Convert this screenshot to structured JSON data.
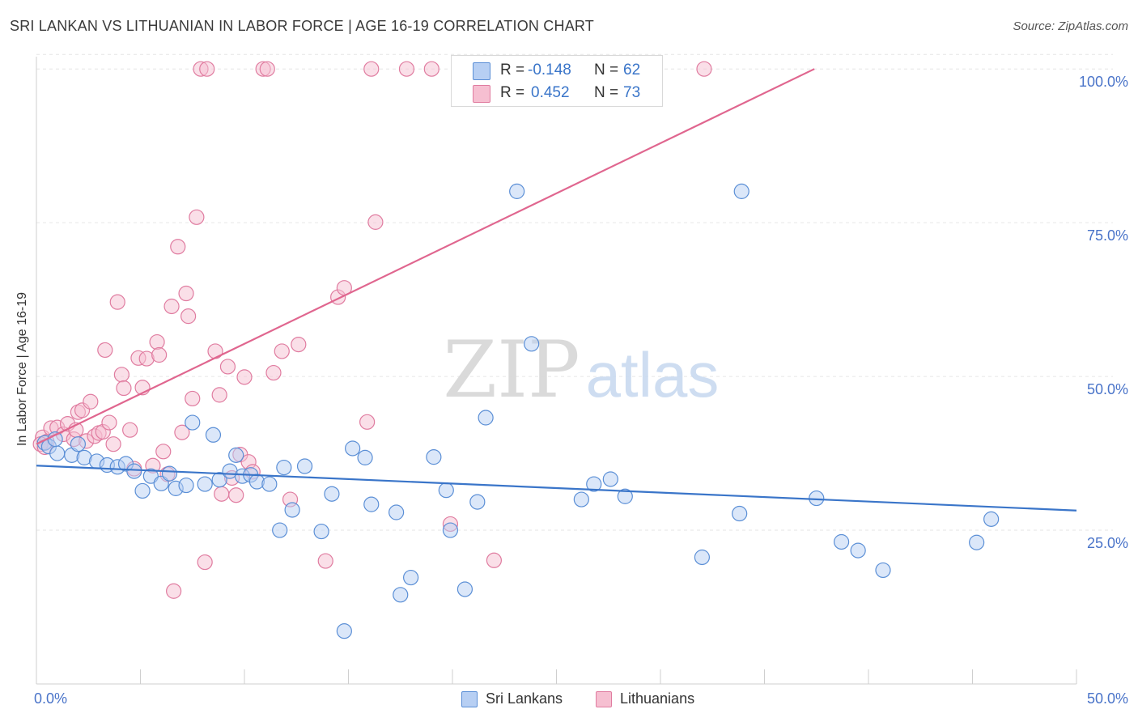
{
  "title": "SRI LANKAN VS LITHUANIAN IN LABOR FORCE | AGE 16-19 CORRELATION CHART",
  "source": "Source: ZipAtlas.com",
  "watermark": {
    "zip": "ZIP",
    "atlas": "atlas"
  },
  "colors": {
    "blue": "#5b8fd6",
    "blue_fill": "#b7cff3",
    "blue_line": "#3a75c9",
    "pink": "#e07ca0",
    "pink_fill": "#f6bfd1",
    "pink_line": "#e0668f",
    "tick_text": "#4a74c9"
  },
  "stats": {
    "blue": {
      "r_label": "R =",
      "r_value": "-0.148",
      "n_label": "N =",
      "n_value": "62"
    },
    "pink": {
      "r_label": "R =",
      "r_value": "0.452",
      "n_label": "N =",
      "n_value": "73"
    }
  },
  "chart_data": {
    "type": "scatter",
    "title": "SRI LANKAN VS LITHUANIAN IN LABOR FORCE | AGE 16-19 CORRELATION CHART",
    "xlabel": "",
    "ylabel": "In Labor Force | Age 16-19",
    "xlim": [
      0,
      50
    ],
    "ylim": [
      0,
      102
    ],
    "x_tick_labels": [
      "0.0%",
      "50.0%"
    ],
    "y_tick_values": [
      25,
      50,
      75,
      100
    ],
    "y_tick_labels": [
      "25.0%",
      "50.0%",
      "75.0%",
      "100.0%"
    ],
    "legend": [
      "Sri Lankans",
      "Lithuanians"
    ],
    "series": [
      {
        "name": "Sri Lankans",
        "color": "blue",
        "trend": {
          "x0": 0,
          "y0": 35.5,
          "x1": 50,
          "y1": 28.2
        },
        "points": [
          [
            0.4,
            39.2
          ],
          [
            0.6,
            38.6
          ],
          [
            1.0,
            37.5
          ],
          [
            1.7,
            37.2
          ],
          [
            2.3,
            36.8
          ],
          [
            2.9,
            36.2
          ],
          [
            3.4,
            35.6
          ],
          [
            3.9,
            35.3
          ],
          [
            4.3,
            35.8
          ],
          [
            4.7,
            34.6
          ],
          [
            5.1,
            31.4
          ],
          [
            5.5,
            33.8
          ],
          [
            6.0,
            32.6
          ],
          [
            6.4,
            34.2
          ],
          [
            6.7,
            31.8
          ],
          [
            7.2,
            32.3
          ],
          [
            7.5,
            42.5
          ],
          [
            8.1,
            32.5
          ],
          [
            8.5,
            40.5
          ],
          [
            8.8,
            33.2
          ],
          [
            9.3,
            34.6
          ],
          [
            9.6,
            37.2
          ],
          [
            9.9,
            33.8
          ],
          [
            10.3,
            34.0
          ],
          [
            10.6,
            32.9
          ],
          [
            11.2,
            32.5
          ],
          [
            11.7,
            25.0
          ],
          [
            11.9,
            35.2
          ],
          [
            12.3,
            28.3
          ],
          [
            12.9,
            35.4
          ],
          [
            13.7,
            24.8
          ],
          [
            14.2,
            30.9
          ],
          [
            14.8,
            8.6
          ],
          [
            15.2,
            38.3
          ],
          [
            15.8,
            36.8
          ],
          [
            16.1,
            29.2
          ],
          [
            17.3,
            27.9
          ],
          [
            17.5,
            14.5
          ],
          [
            18.0,
            17.3
          ],
          [
            19.1,
            36.9
          ],
          [
            19.7,
            31.5
          ],
          [
            19.9,
            25.0
          ],
          [
            20.6,
            15.4
          ],
          [
            21.2,
            29.6
          ],
          [
            21.6,
            43.3
          ],
          [
            23.1,
            80.1
          ],
          [
            23.8,
            55.3
          ],
          [
            26.2,
            30.0
          ],
          [
            26.8,
            32.5
          ],
          [
            27.6,
            33.3
          ],
          [
            28.3,
            30.5
          ],
          [
            32.0,
            20.6
          ],
          [
            33.8,
            27.7
          ],
          [
            33.9,
            80.1
          ],
          [
            37.5,
            30.2
          ],
          [
            38.7,
            23.1
          ],
          [
            39.5,
            21.7
          ],
          [
            40.7,
            18.5
          ],
          [
            45.2,
            23.0
          ],
          [
            45.9,
            26.8
          ],
          [
            0.9,
            39.8
          ],
          [
            2.0,
            39.0
          ]
        ]
      },
      {
        "name": "Lithuanians",
        "color": "pink",
        "trend": {
          "x0": 0,
          "y0": 39.0,
          "x1": 37.4,
          "y1": 100
        },
        "points": [
          [
            0.3,
            40.1
          ],
          [
            0.5,
            39.4
          ],
          [
            0.7,
            41.6
          ],
          [
            1.0,
            41.7
          ],
          [
            1.3,
            40.6
          ],
          [
            1.5,
            42.3
          ],
          [
            1.8,
            39.8
          ],
          [
            1.9,
            41.3
          ],
          [
            2.0,
            44.2
          ],
          [
            2.2,
            44.5
          ],
          [
            2.4,
            39.5
          ],
          [
            2.6,
            45.9
          ],
          [
            2.8,
            40.3
          ],
          [
            3.0,
            40.8
          ],
          [
            3.2,
            41.0
          ],
          [
            3.3,
            54.3
          ],
          [
            3.5,
            42.5
          ],
          [
            3.7,
            39.0
          ],
          [
            3.9,
            62.1
          ],
          [
            4.1,
            50.3
          ],
          [
            4.2,
            48.1
          ],
          [
            4.5,
            41.3
          ],
          [
            4.7,
            35.0
          ],
          [
            4.9,
            53.0
          ],
          [
            5.1,
            48.2
          ],
          [
            5.3,
            52.9
          ],
          [
            5.6,
            35.5
          ],
          [
            5.8,
            55.6
          ],
          [
            5.9,
            53.5
          ],
          [
            6.1,
            37.8
          ],
          [
            6.3,
            34.1
          ],
          [
            6.5,
            61.4
          ],
          [
            6.6,
            15.1
          ],
          [
            6.8,
            71.1
          ],
          [
            7.0,
            40.9
          ],
          [
            7.2,
            63.5
          ],
          [
            7.3,
            59.8
          ],
          [
            7.5,
            46.4
          ],
          [
            7.7,
            75.9
          ],
          [
            7.9,
            100
          ],
          [
            8.1,
            19.8
          ],
          [
            8.2,
            100
          ],
          [
            8.6,
            54.1
          ],
          [
            8.8,
            47.0
          ],
          [
            8.9,
            30.9
          ],
          [
            9.2,
            51.6
          ],
          [
            9.4,
            33.5
          ],
          [
            9.6,
            30.7
          ],
          [
            9.8,
            37.3
          ],
          [
            10.0,
            49.9
          ],
          [
            10.2,
            36.1
          ],
          [
            10.4,
            34.5
          ],
          [
            10.9,
            100
          ],
          [
            11.1,
            100
          ],
          [
            11.4,
            50.6
          ],
          [
            11.8,
            54.1
          ],
          [
            12.2,
            30.0
          ],
          [
            12.6,
            55.2
          ],
          [
            13.9,
            20.0
          ],
          [
            14.5,
            62.9
          ],
          [
            14.8,
            64.4
          ],
          [
            15.9,
            42.6
          ],
          [
            16.1,
            100
          ],
          [
            16.3,
            75.1
          ],
          [
            17.8,
            100
          ],
          [
            19.0,
            100
          ],
          [
            19.9,
            26.0
          ],
          [
            20.5,
            100
          ],
          [
            22.0,
            20.1
          ],
          [
            24.1,
            100
          ],
          [
            32.1,
            100
          ],
          [
            0.2,
            39.0
          ],
          [
            0.4,
            38.5
          ]
        ]
      }
    ]
  }
}
